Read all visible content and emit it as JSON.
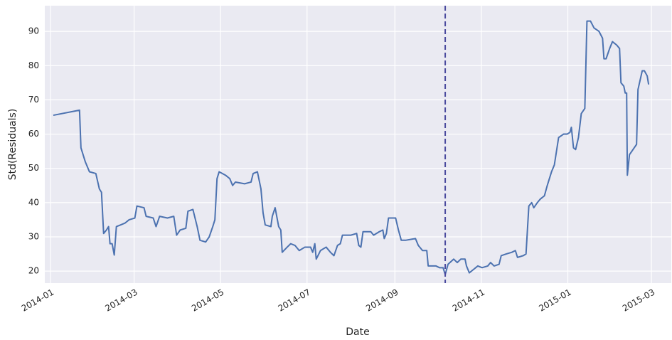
{
  "chart_data": {
    "type": "line",
    "xlabel": "Date",
    "ylabel": "Std(Residuals)",
    "color": "#4c72b0",
    "grid": true,
    "background": "#eaeaf2",
    "xlim": [
      -4,
      438
    ],
    "xticks": [
      {
        "value": 0,
        "label": "2014-01"
      },
      {
        "value": 59,
        "label": "2014-03"
      },
      {
        "value": 120,
        "label": "2014-05"
      },
      {
        "value": 181,
        "label": "2014-07"
      },
      {
        "value": 243,
        "label": "2014-09"
      },
      {
        "value": 304,
        "label": "2014-11"
      },
      {
        "value": 365,
        "label": "2015-01"
      },
      {
        "value": 424,
        "label": "2015-03"
      }
    ],
    "ylim": [
      16.5,
      97.5
    ],
    "yticks": [
      20,
      30,
      40,
      50,
      60,
      70,
      80,
      90
    ],
    "vline": {
      "x": 278.5,
      "color": "#4a4a9e",
      "dashed": true
    },
    "x": [
      2,
      20.5,
      21.5,
      24.5,
      27.5,
      32,
      34.5,
      36,
      37.5,
      39.5,
      41,
      42,
      43.5,
      45,
      46.5,
      49.5,
      52.5,
      55.5,
      59.5,
      61,
      66,
      67.5,
      72.5,
      74.5,
      77,
      82.5,
      87,
      89,
      91.5,
      95.5,
      97,
      100.5,
      103.5,
      105.5,
      109.5,
      112,
      114.5,
      116,
      117.5,
      119,
      123.5,
      126.5,
      128.5,
      130.5,
      137,
      141.5,
      143,
      146,
      148.5,
      150,
      151.5,
      155.5,
      156.5,
      158.5,
      161,
      162.5,
      163.5,
      167,
      169.5,
      172.5,
      175.5,
      179.5,
      183.5,
      185,
      186.5,
      187.5,
      190.5,
      194.5,
      197.5,
      200,
      202.5,
      204.5,
      206,
      212,
      216,
      217.5,
      219,
      220.5,
      226,
      228,
      232,
      234.5,
      235.5,
      237,
      238.5,
      243.5,
      245.5,
      247.5,
      250.5,
      257.5,
      259.5,
      262.5,
      265.5,
      266.5,
      272,
      274.5,
      277,
      278.5,
      280.5,
      284.5,
      287,
      289.5,
      292.5,
      293.5,
      295.5,
      298.5,
      301.5,
      304.5,
      308.5,
      310.5,
      313,
      316.5,
      318,
      321.5,
      325.5,
      328,
      329.5,
      333.5,
      335.5,
      337.5,
      339.5,
      341,
      343.5,
      345.5,
      348.5,
      350.5,
      353.5,
      355.5,
      358.5,
      362,
      364.5,
      366.5,
      367.5,
      369,
      370.5,
      372.5,
      374.5,
      377,
      378.5,
      381,
      383.5,
      387,
      389.5,
      390.5,
      392,
      394.5,
      396.5,
      399.5,
      401.5,
      402.5,
      404.5,
      405.5,
      406.5,
      407,
      408.5,
      411,
      413.5,
      414.5,
      417.5,
      419,
      421,
      422
    ],
    "values": [
      65.5,
      67,
      56,
      52,
      49,
      48.5,
      44,
      43,
      31,
      32,
      33,
      28,
      28,
      24.7,
      33,
      33.5,
      34,
      35,
      35.5,
      39,
      38.5,
      36,
      35.5,
      33,
      36,
      35.5,
      36,
      30.5,
      32,
      32.5,
      37.5,
      38,
      33,
      29,
      28.5,
      30,
      33,
      35,
      47,
      49,
      48,
      47,
      45,
      46,
      45.5,
      46,
      48.5,
      49,
      44,
      37,
      33.5,
      33,
      36,
      38.5,
      33,
      32,
      25.5,
      27,
      28,
      27.5,
      26,
      27,
      27,
      25.5,
      28,
      23.5,
      26,
      27,
      25.5,
      24.5,
      27.5,
      28,
      30.5,
      30.5,
      31,
      27.5,
      27,
      31.5,
      31.5,
      30.5,
      31.5,
      32,
      29.5,
      31,
      35.5,
      35.5,
      32,
      29,
      29,
      29.5,
      27.5,
      26,
      26,
      21.5,
      21.5,
      21,
      21,
      19,
      22,
      23.5,
      22.5,
      23.5,
      23.5,
      21.5,
      19.5,
      20.5,
      21.5,
      21,
      21.5,
      22.5,
      21.5,
      22,
      24.5,
      25,
      25.5,
      26,
      24,
      24.5,
      25,
      39,
      40,
      38.5,
      40,
      41,
      42,
      45,
      49,
      51,
      59,
      60,
      60,
      60.5,
      62,
      56,
      55.5,
      59,
      66,
      67.5,
      93,
      93,
      91,
      90,
      88,
      82,
      82,
      85,
      87,
      86,
      85,
      75,
      74,
      72,
      72,
      48,
      54,
      55.5,
      57,
      73,
      78.5,
      78.5,
      77,
      74.5
    ]
  }
}
